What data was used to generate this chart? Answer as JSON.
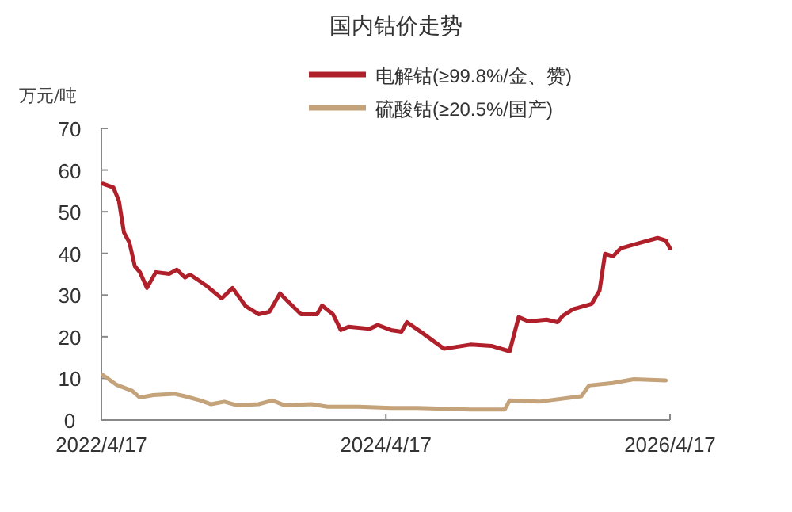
{
  "chart_data": {
    "type": "line",
    "title": "国内钴价走势",
    "ylabel": "万元/吨",
    "xlim": [
      "2022-04-17",
      "2026-04-17"
    ],
    "xticks": [
      {
        "value": "2022-04-17",
        "label": "2022/4/17"
      },
      {
        "value": "2024-04-17",
        "label": "2024/4/17"
      },
      {
        "value": "2026-04-17",
        "label": "2026/4/17"
      }
    ],
    "ylim": [
      0,
      70
    ],
    "yticks": [
      0,
      10,
      20,
      30,
      40,
      50,
      60,
      70
    ],
    "grid": false,
    "legend": "top",
    "marker": "none",
    "line_style": "solid",
    "series": [
      {
        "name": "电解钴(≥99.8%/金、赞)",
        "color": "#b0202a",
        "x": [
          "2022-04-21",
          "2022-05-18",
          "2022-06-01",
          "2022-06-14",
          "2022-06-28",
          "2022-07-12",
          "2022-07-25",
          "2022-08-12",
          "2022-09-04",
          "2022-10-08",
          "2022-10-28",
          "2022-11-18",
          "2022-12-01",
          "2023-01-11",
          "2023-02-20",
          "2023-03-20",
          "2023-04-23",
          "2023-05-26",
          "2023-06-23",
          "2023-07-20",
          "2023-08-09",
          "2023-09-12",
          "2023-10-23",
          "2023-11-05",
          "2023-12-03",
          "2023-12-23",
          "2024-01-12",
          "2024-03-06",
          "2024-03-27",
          "2024-04-30",
          "2024-05-27",
          "2024-06-10",
          "2024-07-20",
          "2024-09-13",
          "2024-11-20",
          "2025-01-13",
          "2025-03-01",
          "2025-03-24",
          "2025-04-18",
          "2025-06-04",
          "2025-07-02",
          "2025-07-15",
          "2025-08-11",
          "2025-09-28",
          "2025-10-18",
          "2025-11-01",
          "2025-11-21",
          "2025-12-11",
          "2026-01-28",
          "2026-03-16",
          "2026-04-06",
          "2026-04-17"
        ],
        "values": [
          56.7,
          55.8,
          52.6,
          45,
          42.6,
          36.9,
          35.5,
          31.7,
          35.5,
          35.1,
          36.1,
          34.2,
          34.9,
          32.3,
          29.2,
          31.7,
          27.3,
          25.4,
          26,
          30.4,
          28.5,
          25.4,
          25.4,
          27.5,
          25.4,
          21.6,
          22.4,
          21.9,
          22.8,
          21.6,
          21.2,
          23.5,
          20.9,
          17.1,
          18.1,
          17.8,
          16.5,
          24.7,
          23.7,
          24.1,
          23.5,
          25,
          26.6,
          27.9,
          31.1,
          39.9,
          39.3,
          41.2,
          42.5,
          43.7,
          43.1,
          41.2
        ]
      },
      {
        "name": "硫酸钴(≥20.5%/国产)",
        "color": "#c4a27a",
        "x": [
          "2022-04-21",
          "2022-05-25",
          "2022-07-05",
          "2022-07-25",
          "2022-08-28",
          "2022-10-21",
          "2022-11-18",
          "2022-12-28",
          "2023-01-24",
          "2023-02-27",
          "2023-04-02",
          "2023-05-26",
          "2023-06-30",
          "2023-08-02",
          "2023-10-09",
          "2023-11-19",
          "2024-02-08",
          "2024-04-30",
          "2024-07-07",
          "2024-11-20",
          "2025-02-16",
          "2025-03-01",
          "2025-05-15",
          "2025-09-01",
          "2025-09-21",
          "2025-11-21",
          "2026-01-14",
          "2026-04-06"
        ],
        "values": [
          10.8,
          8.5,
          7,
          5.4,
          6,
          6.3,
          5.7,
          4.7,
          3.8,
          4.4,
          3.5,
          3.8,
          4.7,
          3.5,
          3.8,
          3.2,
          3.2,
          2.9,
          2.9,
          2.5,
          2.5,
          4.7,
          4.4,
          5.7,
          8.3,
          8.9,
          9.8,
          9.5
        ]
      }
    ]
  }
}
